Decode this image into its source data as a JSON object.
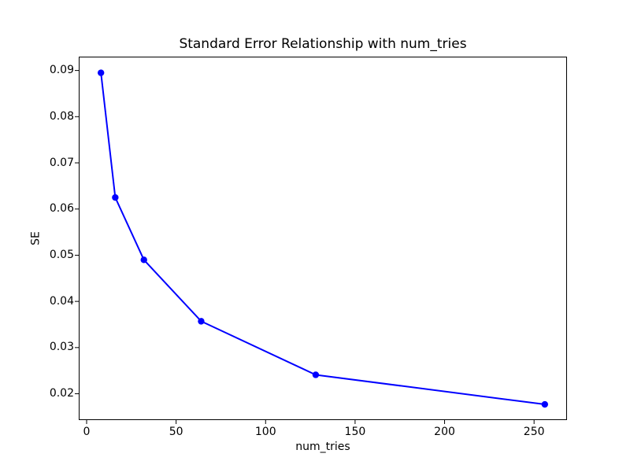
{
  "chart_data": {
    "type": "line",
    "title": "Standard Error Relationship with num_tries",
    "xlabel": "num_tries",
    "ylabel": "SE",
    "x": [
      8,
      16,
      32,
      64,
      128,
      256
    ],
    "y": [
      0.0895,
      0.0625,
      0.049,
      0.0357,
      0.0241,
      0.0177
    ],
    "series_name": "SE",
    "xticks": [
      0,
      50,
      100,
      150,
      200,
      250
    ],
    "yticks": [
      0.02,
      0.03,
      0.04,
      0.05,
      0.06,
      0.07,
      0.08,
      0.09
    ],
    "ytick_decimals": 2,
    "xlim": [
      -4.4,
      268.4
    ],
    "ylim": [
      0.0143,
      0.093
    ],
    "grid": false,
    "legend_visible": false,
    "line_color": "#0000ff",
    "marker": "o",
    "marker_color": "#0000ff",
    "frame_color": "#000000",
    "background_color": "#ffffff"
  }
}
